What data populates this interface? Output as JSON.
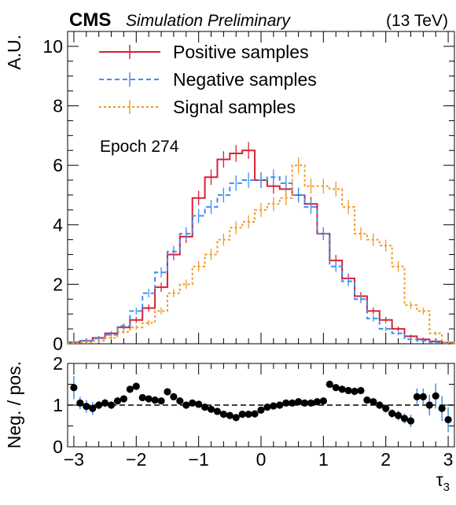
{
  "header": {
    "experiment": "CMS",
    "status": "Simulation Preliminary",
    "energy": "(13 TeV)"
  },
  "annotation": "Epoch 274",
  "colors": {
    "positive": "#d62235",
    "negative": "#3f8ff0",
    "signal": "#ef9a27",
    "ratio_marker": "#000000",
    "ratio_error": "#3f8ff0"
  },
  "chart_data": [
    {
      "type": "line",
      "style": "step histogram",
      "xlabel": "τ3",
      "ylabel": "A.U.",
      "xlim": [
        -3.1,
        3.1
      ],
      "ylim": [
        0,
        10.5
      ],
      "y_ticks": [
        0,
        2,
        4,
        6,
        8,
        10
      ],
      "legend_position": "top-left",
      "bin_edges": [
        -3.1,
        -2.9,
        -2.7,
        -2.5,
        -2.3,
        -2.1,
        -1.9,
        -1.7,
        -1.5,
        -1.3,
        -1.1,
        -0.9,
        -0.7,
        -0.5,
        -0.3,
        -0.1,
        0.1,
        0.3,
        0.5,
        0.7,
        0.9,
        1.1,
        1.3,
        1.5,
        1.7,
        1.9,
        2.1,
        2.3,
        2.5,
        2.7,
        2.9,
        3.1
      ],
      "series": [
        {
          "name": "Positive samples",
          "color": "#d62235",
          "dash": "solid",
          "values": [
            0.05,
            0.1,
            0.2,
            0.35,
            0.55,
            0.8,
            1.2,
            1.9,
            3.0,
            3.6,
            4.9,
            5.6,
            6.2,
            6.4,
            6.5,
            5.5,
            5.3,
            5.2,
            5.0,
            4.7,
            3.7,
            2.8,
            2.2,
            1.6,
            1.1,
            0.8,
            0.5,
            0.25,
            0.15,
            0.08,
            0.04
          ]
        },
        {
          "name": "Negative samples",
          "color": "#3f8ff0",
          "dash": "dashed",
          "values": [
            0.06,
            0.1,
            0.18,
            0.3,
            0.6,
            1.1,
            1.7,
            2.4,
            3.1,
            3.7,
            4.3,
            4.6,
            5.0,
            5.4,
            5.5,
            5.5,
            5.6,
            5.4,
            5.0,
            4.6,
            3.7,
            2.6,
            2.1,
            1.5,
            0.85,
            0.5,
            0.35,
            0.15,
            0.1,
            0.05,
            0.02
          ]
        },
        {
          "name": "Signal samples",
          "color": "#ef9a27",
          "dash": "dotted",
          "values": [
            0.03,
            0.05,
            0.1,
            0.2,
            0.4,
            0.55,
            0.7,
            1.1,
            1.7,
            2.0,
            2.6,
            3.0,
            3.5,
            3.9,
            4.1,
            4.5,
            4.7,
            4.9,
            6.0,
            5.3,
            5.3,
            5.2,
            4.6,
            3.7,
            3.5,
            3.3,
            2.6,
            1.3,
            1.1,
            0.35,
            0.05
          ]
        }
      ]
    },
    {
      "type": "scatter",
      "style": "ratio panel with error bars",
      "xlabel": "τ3",
      "ylabel": "Neg. / pos.",
      "xlim": [
        -3.1,
        3.1
      ],
      "ylim": [
        0,
        2
      ],
      "y_ticks": [
        0,
        1,
        2
      ],
      "x_ticks": [
        -3,
        -2,
        -1,
        0,
        1,
        2,
        3
      ],
      "reference_line": 1,
      "x": [
        -3.0,
        -2.9,
        -2.8,
        -2.7,
        -2.6,
        -2.5,
        -2.4,
        -2.3,
        -2.2,
        -2.1,
        -2.0,
        -1.9,
        -1.8,
        -1.7,
        -1.6,
        -1.5,
        -1.4,
        -1.3,
        -1.2,
        -1.1,
        -1.0,
        -0.9,
        -0.8,
        -0.7,
        -0.6,
        -0.5,
        -0.4,
        -0.3,
        -0.2,
        -0.1,
        0.0,
        0.1,
        0.2,
        0.3,
        0.4,
        0.5,
        0.6,
        0.7,
        0.8,
        0.9,
        1.0,
        1.1,
        1.2,
        1.3,
        1.4,
        1.5,
        1.6,
        1.7,
        1.8,
        1.9,
        2.0,
        2.1,
        2.2,
        2.3,
        2.4,
        2.5,
        2.6,
        2.7,
        2.8,
        2.9,
        3.0
      ],
      "y": [
        1.42,
        1.05,
        0.97,
        0.92,
        1.0,
        1.05,
        1.0,
        1.1,
        1.15,
        1.38,
        1.45,
        1.18,
        1.15,
        1.12,
        1.1,
        1.32,
        1.2,
        1.1,
        1.0,
        1.05,
        1.02,
        0.95,
        0.9,
        0.85,
        0.78,
        0.75,
        0.7,
        0.78,
        0.78,
        0.79,
        0.88,
        0.95,
        0.98,
        1.0,
        1.05,
        1.05,
        1.08,
        1.05,
        1.05,
        1.08,
        1.1,
        1.5,
        1.42,
        1.38,
        1.35,
        1.33,
        1.35,
        1.12,
        1.08,
        1.0,
        0.92,
        0.8,
        0.75,
        0.68,
        0.62,
        1.2,
        1.2,
        1.0,
        1.22,
        0.92,
        0.65
      ],
      "y_err": [
        0.28,
        0.15,
        0.15,
        0.15,
        0.1,
        0.1,
        0.08,
        0.08,
        0.08,
        0.08,
        0.08,
        0.06,
        0.06,
        0.05,
        0.05,
        0.05,
        0.05,
        0.04,
        0.04,
        0.04,
        0.04,
        0.03,
        0.03,
        0.03,
        0.03,
        0.03,
        0.03,
        0.03,
        0.03,
        0.03,
        0.03,
        0.03,
        0.03,
        0.03,
        0.03,
        0.03,
        0.03,
        0.03,
        0.03,
        0.03,
        0.04,
        0.05,
        0.05,
        0.05,
        0.06,
        0.06,
        0.06,
        0.07,
        0.08,
        0.09,
        0.1,
        0.1,
        0.12,
        0.12,
        0.15,
        0.2,
        0.2,
        0.25,
        0.3,
        0.3,
        0.3
      ]
    }
  ]
}
